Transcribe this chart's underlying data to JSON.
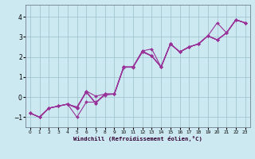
{
  "xlabel": "Windchill (Refroidissement éolien,°C)",
  "background_color": "#cce8f0",
  "grid_color": "#9bbfcc",
  "line_color": "#993399",
  "xlim": [
    -0.5,
    23.5
  ],
  "ylim": [
    -1.5,
    4.6
  ],
  "yticks": [
    -1,
    0,
    1,
    2,
    3,
    4
  ],
  "xticks": [
    0,
    1,
    2,
    3,
    4,
    5,
    6,
    7,
    8,
    9,
    10,
    11,
    12,
    13,
    14,
    15,
    16,
    17,
    18,
    19,
    20,
    21,
    22,
    23
  ],
  "x": [
    0,
    1,
    2,
    3,
    4,
    5,
    6,
    7,
    8,
    9,
    10,
    11,
    12,
    13,
    14,
    15,
    16,
    17,
    18,
    19,
    20,
    21,
    22,
    23
  ],
  "series_y": [
    [
      -0.8,
      -1.0,
      -0.55,
      -0.45,
      -0.35,
      -1.0,
      -0.25,
      -0.25,
      0.1,
      0.15,
      1.5,
      1.5,
      2.3,
      2.4,
      1.5,
      2.65,
      2.25,
      2.5,
      2.65,
      3.05,
      3.7,
      3.2,
      3.85,
      3.7
    ],
    [
      -0.8,
      -1.0,
      -0.55,
      -0.45,
      -0.35,
      -0.55,
      0.3,
      0.05,
      0.15,
      0.15,
      1.5,
      1.5,
      2.3,
      2.05,
      1.5,
      2.65,
      2.25,
      2.5,
      2.65,
      3.05,
      2.85,
      3.2,
      3.85,
      3.7
    ],
    [
      -0.8,
      -1.0,
      -0.55,
      -0.45,
      -0.35,
      -0.55,
      0.28,
      -0.3,
      0.15,
      0.15,
      1.48,
      1.5,
      2.28,
      2.05,
      1.5,
      2.65,
      2.25,
      2.5,
      2.65,
      3.05,
      2.85,
      3.2,
      3.85,
      3.7
    ],
    [
      -0.8,
      -1.0,
      -0.55,
      -0.45,
      -0.35,
      -0.5,
      0.26,
      -0.3,
      0.15,
      0.15,
      1.5,
      1.48,
      2.25,
      2.05,
      1.5,
      2.65,
      2.25,
      2.5,
      2.65,
      3.05,
      2.85,
      3.2,
      3.85,
      3.7
    ],
    [
      -0.8,
      -1.0,
      -0.55,
      -0.45,
      -0.35,
      -0.5,
      0.24,
      -0.3,
      0.15,
      0.15,
      1.5,
      1.5,
      2.25,
      2.05,
      1.5,
      2.65,
      2.25,
      2.5,
      2.65,
      3.05,
      2.85,
      3.2,
      3.85,
      3.7
    ]
  ],
  "marker": "D",
  "markersize": 2.0,
  "linewidth": 0.8
}
